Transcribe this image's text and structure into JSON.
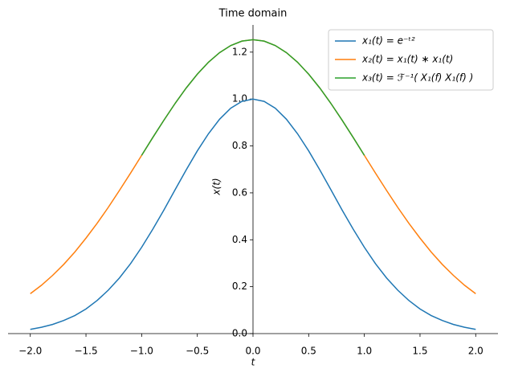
{
  "chart_data": {
    "type": "line",
    "title": "Time domain",
    "x_label": "t",
    "y_label": "x(t)",
    "x": [
      -2.0,
      -1.9,
      -1.8,
      -1.7,
      -1.6,
      -1.5,
      -1.4,
      -1.3,
      -1.2,
      -1.1,
      -1.0,
      -0.9,
      -0.8,
      -0.7,
      -0.6,
      -0.5,
      -0.4,
      -0.3,
      -0.2,
      -0.1,
      0.0,
      0.1,
      0.2,
      0.3,
      0.4,
      0.5,
      0.6,
      0.7,
      0.8,
      0.9,
      1.0,
      1.1,
      1.2,
      1.3,
      1.4,
      1.5,
      1.6,
      1.7,
      1.8,
      1.9,
      2.0
    ],
    "series": [
      {
        "name": "x₁(t) = e⁻ᵗ²",
        "color": "#1f77b4",
        "values": [
          0.018,
          0.027,
          0.039,
          0.056,
          0.077,
          0.105,
          0.141,
          0.185,
          0.237,
          0.298,
          0.368,
          0.445,
          0.527,
          0.613,
          0.698,
          0.779,
          0.852,
          0.914,
          0.961,
          0.99,
          1.0,
          0.99,
          0.961,
          0.914,
          0.852,
          0.779,
          0.698,
          0.613,
          0.527,
          0.445,
          0.368,
          0.298,
          0.237,
          0.185,
          0.141,
          0.105,
          0.077,
          0.056,
          0.039,
          0.027,
          0.018
        ]
      },
      {
        "name": "x₂(t) = x₁(t) ∗ x₁(t)",
        "color": "#ff7f0e",
        "values": [
          0.17,
          0.206,
          0.248,
          0.295,
          0.348,
          0.407,
          0.47,
          0.538,
          0.61,
          0.684,
          0.76,
          0.836,
          0.91,
          0.981,
          1.047,
          1.106,
          1.157,
          1.198,
          1.228,
          1.247,
          1.253,
          1.247,
          1.228,
          1.198,
          1.157,
          1.106,
          1.047,
          0.981,
          0.91,
          0.836,
          0.76,
          0.684,
          0.61,
          0.538,
          0.47,
          0.407,
          0.348,
          0.295,
          0.248,
          0.206,
          0.17
        ]
      },
      {
        "name": "x₃(t) = ℱ⁻¹( X₁(f) X₁(f) )",
        "color": "#2ca02c",
        "values": [
          null,
          null,
          null,
          null,
          null,
          null,
          null,
          null,
          null,
          null,
          0.76,
          0.836,
          0.91,
          0.981,
          1.047,
          1.106,
          1.157,
          1.198,
          1.228,
          1.247,
          1.253,
          1.247,
          1.228,
          1.198,
          1.157,
          1.106,
          1.047,
          0.981,
          0.91,
          0.836,
          0.76,
          null,
          null,
          null,
          null,
          null,
          null,
          null,
          null,
          null,
          null
        ]
      }
    ],
    "xlim": [
      -2.2,
      2.2
    ],
    "ylim": [
      0,
      1.316
    ],
    "xticks": [
      {
        "value": -2.0,
        "label": "−2.0"
      },
      {
        "value": -1.5,
        "label": "−1.5"
      },
      {
        "value": -1.0,
        "label": "−1.0"
      },
      {
        "value": -0.5,
        "label": "−0.5"
      },
      {
        "value": 0,
        "label": "0.0"
      },
      0.5,
      {
        "value": 1,
        "label": "1.0"
      },
      1.5,
      {
        "value": 2,
        "label": "2.0"
      }
    ],
    "yticks": [
      {
        "value": 0,
        "label": "0.0"
      },
      0.2,
      0.4,
      0.6,
      0.8,
      {
        "value": 1,
        "label": "1.0"
      },
      1.2
    ],
    "legend": "upper right"
  }
}
